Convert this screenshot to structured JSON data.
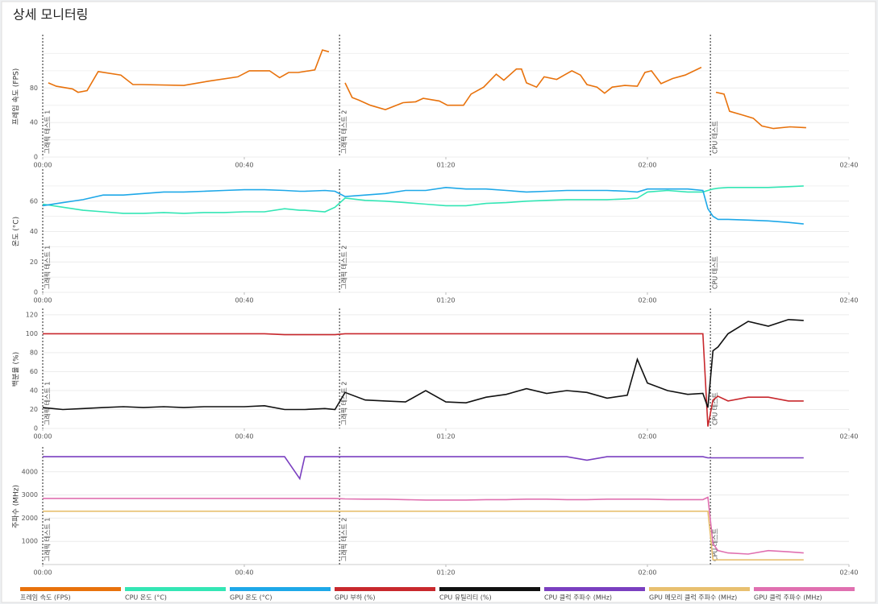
{
  "title": "상세 모니터링",
  "legend": "bottom",
  "chart_data": [
    {
      "type": "line",
      "ylabel": "프레임 속도 (FPS)",
      "x": [
        1.1,
        2.7,
        5.9,
        7,
        8.8,
        11,
        15.5,
        17.9,
        19.5,
        28,
        33,
        38.7,
        41,
        45,
        47,
        48.8,
        50.7,
        54,
        55.5,
        56.8,
        58.5,
        60,
        61.4,
        62.7,
        65,
        68,
        71.5,
        74,
        75.5,
        78.7,
        80.3,
        83.5,
        85,
        87.5,
        90,
        91.5,
        94,
        95,
        96,
        98,
        99.5,
        102,
        103.5,
        105,
        106.7,
        108,
        110,
        111.5,
        113,
        115.5,
        118,
        119.5,
        120.8,
        122.7,
        125,
        127.5,
        130.7,
        132,
        133.6,
        135.2,
        136.3,
        138.7,
        141,
        142.7,
        145,
        148.3,
        151.5
      ],
      "xlim": [
        0,
        160
      ],
      "xticks": [
        {
          "value": 0,
          "label": "00:00"
        },
        {
          "value": 40,
          "label": "00:40"
        },
        {
          "value": 80,
          "label": "01:20"
        },
        {
          "value": 120,
          "label": "02:00"
        },
        {
          "value": 160,
          "label": "02:40"
        }
      ],
      "ylim": [
        0,
        140
      ],
      "yticks": [
        0,
        40,
        80
      ],
      "minor_yticks": [
        20,
        60,
        100,
        120
      ],
      "grid": true,
      "markers": [
        {
          "x": 0,
          "label": "그래픽 테스트 1"
        },
        {
          "x": 58.9,
          "label": "그래픽 테스트 2"
        },
        {
          "x": 132.5,
          "label": "CPU 테스트"
        }
      ],
      "series": [
        {
          "name": "프레임 속도 (FPS)",
          "color": "#e8720c",
          "values": [
            86,
            82,
            79,
            75,
            77,
            99,
            95,
            84,
            84,
            83,
            88,
            93,
            100,
            100,
            92,
            98,
            98,
            101,
            124,
            122,
            null,
            86,
            69,
            66,
            60,
            55,
            63,
            64,
            68,
            65,
            60,
            60,
            73,
            81,
            96,
            89,
            102,
            102,
            86,
            81,
            93,
            90,
            95,
            100,
            95,
            84,
            81,
            74,
            81,
            83,
            82,
            98,
            100,
            85,
            91,
            95,
            104,
            null,
            75,
            73,
            53,
            49,
            45,
            36,
            33,
            35,
            34
          ]
        }
      ]
    },
    {
      "type": "line",
      "ylabel": "온도 (°C)",
      "x": [
        0,
        4,
        8,
        12,
        16,
        20,
        24,
        28,
        32,
        36,
        40,
        44,
        48,
        51,
        52,
        56,
        58,
        60,
        64,
        68,
        72,
        76,
        80,
        84,
        88,
        92,
        96,
        100,
        104,
        108,
        112,
        116,
        118,
        120,
        124,
        128,
        131,
        132,
        133,
        134,
        136,
        140,
        144,
        148,
        151
      ],
      "xlim": [
        0,
        160
      ],
      "xticks": [
        {
          "value": 0,
          "label": "00:00"
        },
        {
          "value": 40,
          "label": "00:40"
        },
        {
          "value": 80,
          "label": "01:20"
        },
        {
          "value": 120,
          "label": "02:00"
        },
        {
          "value": 160,
          "label": "02:40"
        }
      ],
      "ylim": [
        0,
        80
      ],
      "yticks": [
        0,
        20,
        40,
        60
      ],
      "minor_yticks": [
        10,
        30,
        50,
        70
      ],
      "grid": true,
      "markers": [
        {
          "x": 0,
          "label": "그래픽 테스트 1"
        },
        {
          "x": 58.9,
          "label": "그래픽 테스트 2"
        },
        {
          "x": 132.5,
          "label": "CPU 테스트"
        }
      ],
      "series": [
        {
          "name": "CPU 온도 (°C)",
          "color": "#33e6b5",
          "values": [
            58,
            56,
            54,
            53,
            52,
            52,
            52.5,
            52,
            52.5,
            52.5,
            53,
            53,
            55,
            54,
            54,
            53,
            56,
            62,
            60.5,
            60,
            59,
            58,
            57,
            57,
            58.5,
            59,
            60,
            60.5,
            61,
            61,
            61,
            61.5,
            62,
            66,
            67,
            66,
            66,
            67,
            68,
            68.5,
            69,
            69,
            69,
            69.5,
            70
          ]
        },
        {
          "name": "GPU 온도 (°C)",
          "color": "#1ea8e8",
          "values": [
            57,
            59,
            61,
            64,
            64,
            65,
            66,
            66,
            66.5,
            67,
            67.5,
            67.5,
            67,
            66.5,
            66.5,
            67,
            66.5,
            63,
            64,
            65,
            67,
            67,
            69,
            68,
            68,
            67,
            66,
            66.5,
            67,
            67,
            67,
            66.5,
            66,
            68,
            68,
            68,
            67,
            55,
            50,
            48,
            48,
            47.5,
            47,
            46,
            45
          ]
        }
      ]
    },
    {
      "type": "line",
      "ylabel": "백분율 (%)",
      "x": [
        0,
        4,
        8,
        12,
        16,
        20,
        24,
        28,
        32,
        36,
        40,
        44,
        48,
        51,
        52,
        56,
        58,
        60,
        64,
        68,
        72,
        76,
        80,
        84,
        88,
        92,
        96,
        100,
        104,
        108,
        112,
        116,
        118,
        120,
        124,
        128,
        131,
        132,
        133,
        134,
        136,
        140,
        144,
        148,
        151
      ],
      "xlim": [
        0,
        160
      ],
      "xticks": [
        {
          "value": 0,
          "label": "00:00"
        },
        {
          "value": 40,
          "label": "00:40"
        },
        {
          "value": 80,
          "label": "01:20"
        },
        {
          "value": 120,
          "label": "02:00"
        },
        {
          "value": 160,
          "label": "02:40"
        }
      ],
      "ylim": [
        0,
        125
      ],
      "yticks": [
        0,
        20,
        40,
        60,
        80,
        100,
        120
      ],
      "grid": true,
      "markers": [
        {
          "x": 0,
          "label": "그래픽 테스트 1"
        },
        {
          "x": 58.9,
          "label": "그래픽 테스트 2"
        },
        {
          "x": 132.5,
          "label": "CPU 테스트"
        }
      ],
      "series": [
        {
          "name": "GPU 부하 (%)",
          "color": "#c8282d",
          "values": [
            100,
            100,
            100,
            100,
            100,
            100,
            100,
            100,
            100,
            100,
            100,
            100,
            99,
            99,
            99,
            99,
            99,
            100,
            100,
            100,
            100,
            100,
            100,
            100,
            100,
            100,
            100,
            100,
            100,
            100,
            100,
            100,
            100,
            100,
            100,
            100,
            100,
            2,
            30,
            34,
            29,
            33,
            33,
            29,
            29
          ]
        },
        {
          "name": "CPU 유틸리티 (%)",
          "color": "#111111",
          "values": [
            22,
            20,
            21,
            22,
            23,
            22,
            23,
            22,
            23,
            23,
            23,
            24,
            20,
            20,
            20,
            21,
            20,
            38,
            30,
            29,
            28,
            40,
            28,
            27,
            33,
            36,
            42,
            37,
            40,
            38,
            32,
            35,
            73,
            48,
            40,
            36,
            37,
            22,
            82,
            86,
            100,
            113,
            108,
            115,
            114
          ]
        }
      ]
    },
    {
      "type": "line",
      "ylabel": "주파수 (MHz)",
      "x": [
        0,
        4,
        8,
        12,
        16,
        20,
        24,
        28,
        32,
        36,
        40,
        44,
        48,
        51,
        52,
        56,
        58,
        60,
        64,
        68,
        72,
        76,
        80,
        84,
        88,
        92,
        96,
        100,
        104,
        108,
        112,
        116,
        118,
        120,
        124,
        128,
        131,
        132,
        133,
        134,
        136,
        140,
        144,
        148,
        151
      ],
      "xlim": [
        0,
        160
      ],
      "xticks": [
        {
          "value": 0,
          "label": "00:00"
        },
        {
          "value": 40,
          "label": "00:40"
        },
        {
          "value": 80,
          "label": "01:20"
        },
        {
          "value": 120,
          "label": "02:00"
        },
        {
          "value": 160,
          "label": "02:40"
        }
      ],
      "ylim": [
        0,
        5000
      ],
      "yticks": [
        1000,
        2000,
        3000,
        4000
      ],
      "grid": true,
      "markers": [
        {
          "x": 0,
          "label": "그래픽 테스트 1"
        },
        {
          "x": 58.9,
          "label": "그래픽 테스트 2"
        },
        {
          "x": 132.5,
          "label": "CPU 테스트"
        }
      ],
      "series": [
        {
          "name": "CPU 클럭 주파수 (MHz)",
          "color": "#7a3fc0",
          "values": [
            4650,
            4650,
            4650,
            4650,
            4650,
            4650,
            4650,
            4650,
            4650,
            4650,
            4650,
            4650,
            4650,
            3700,
            4650,
            4650,
            4650,
            4650,
            4650,
            4650,
            4650,
            4650,
            4650,
            4650,
            4650,
            4650,
            4650,
            4650,
            4650,
            4500,
            4650,
            4650,
            4650,
            4650,
            4650,
            4650,
            4650,
            4600,
            4600,
            4600,
            4600,
            4600,
            4600,
            4600,
            4600
          ]
        },
        {
          "name": "GPU 메모리 클럭 주파수 (MHz)",
          "color": "#e8c070",
          "values": [
            2300,
            2300,
            2300,
            2300,
            2300,
            2300,
            2300,
            2300,
            2300,
            2300,
            2300,
            2300,
            2300,
            2300,
            2300,
            2300,
            2300,
            2300,
            2300,
            2300,
            2300,
            2300,
            2300,
            2300,
            2300,
            2300,
            2300,
            2300,
            2300,
            2300,
            2300,
            2300,
            2300,
            2300,
            2300,
            2300,
            2300,
            2300,
            200,
            200,
            200,
            200,
            200,
            200,
            200
          ]
        },
        {
          "name": "GPU 클럭 주파수 (MHz)",
          "color": "#e070b0",
          "values": [
            2850,
            2850,
            2850,
            2850,
            2850,
            2850,
            2850,
            2850,
            2850,
            2850,
            2850,
            2850,
            2850,
            2850,
            2850,
            2850,
            2850,
            2830,
            2820,
            2820,
            2800,
            2780,
            2780,
            2780,
            2800,
            2800,
            2820,
            2820,
            2800,
            2800,
            2820,
            2820,
            2820,
            2820,
            2800,
            2800,
            2800,
            2900,
            900,
            600,
            500,
            450,
            600,
            550,
            500
          ]
        }
      ]
    }
  ]
}
